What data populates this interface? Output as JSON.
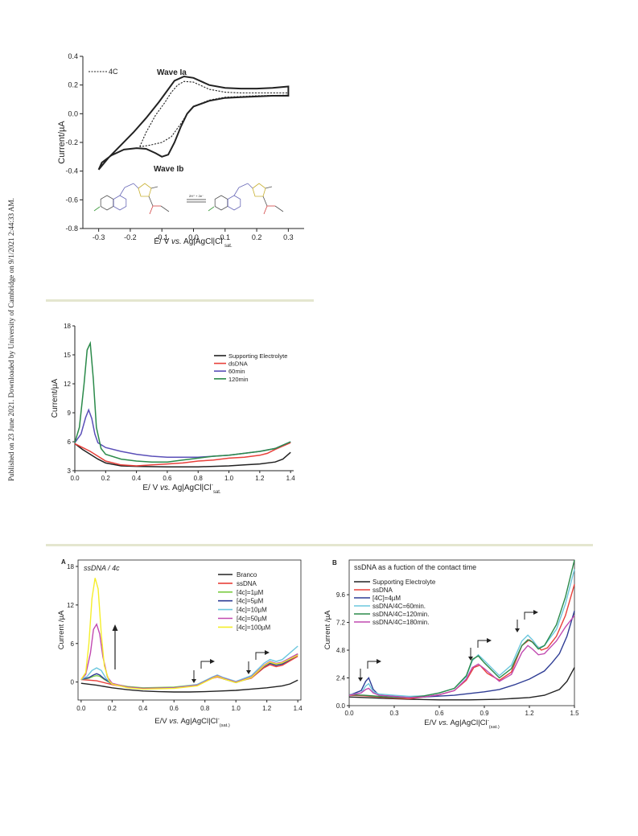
{
  "side_note": "Published on 23 June 2021. Downloaded by University of Cambridge on 9/1/2021 2:44:33 AM.",
  "colors": {
    "black": "#222222",
    "red": "#e8403a",
    "blue": "#2f3d95",
    "green": "#2b8a4a",
    "lightgreen": "#7ccc45",
    "cyan": "#6cc7de",
    "magenta": "#c14ab0",
    "yellow": "#f5ee2a",
    "purple": "#5a4fb8",
    "separator": "#e4e6cf"
  },
  "chart_data": [
    {
      "id": "cv",
      "type": "line",
      "ylabel": "Current/µA",
      "xlabel_main": "E/ V vs. Ag|AgCl|Cl",
      "xlabel_sup": "-",
      "xlabel_sub": "sat.",
      "xlim": [
        -0.35,
        0.35
      ],
      "ylim": [
        -0.8,
        0.4
      ],
      "xticks": [
        "-0.3",
        "-0.2",
        "-0.1",
        "0.0",
        "0.1",
        "0.2",
        "0.3"
      ],
      "yticks": [
        "-0.8",
        "-0.6",
        "-0.4",
        "-0.2",
        "0.0",
        "0.2",
        "0.4"
      ],
      "legend": "4C",
      "annotations": {
        "wave_a": "Wave Ia",
        "wave_b": "Wave Ib",
        "scheme_arrow": "2H⁺ + 2e⁻"
      },
      "series": [
        {
          "style": "solid",
          "color": "black",
          "x": [
            -0.3,
            -0.27,
            -0.23,
            -0.19,
            -0.15,
            -0.11,
            -0.08,
            -0.06,
            -0.03,
            0.0,
            0.05,
            0.1,
            0.15,
            0.2,
            0.25,
            0.3,
            0.3,
            0.25,
            0.2,
            0.15,
            0.1,
            0.05,
            0.0,
            -0.02,
            -0.04,
            -0.06,
            -0.08,
            -0.1,
            -0.12,
            -0.15,
            -0.18,
            -0.22,
            -0.26,
            -0.29,
            -0.3
          ],
          "y": [
            -0.39,
            -0.31,
            -0.22,
            -0.13,
            -0.03,
            0.08,
            0.17,
            0.23,
            0.26,
            0.25,
            0.2,
            0.18,
            0.175,
            0.175,
            0.18,
            0.19,
            0.125,
            0.125,
            0.12,
            0.115,
            0.11,
            0.09,
            0.05,
            0.0,
            -0.09,
            -0.2,
            -0.285,
            -0.3,
            -0.275,
            -0.245,
            -0.24,
            -0.25,
            -0.29,
            -0.34,
            -0.39
          ]
        },
        {
          "style": "dashed",
          "color": "black",
          "x": [
            -0.17,
            -0.15,
            -0.12,
            -0.09,
            -0.07,
            -0.05,
            -0.03,
            0.0,
            0.05,
            0.1,
            0.15,
            0.2,
            0.25,
            0.3,
            0.3,
            0.2,
            0.1,
            0.05,
            0.0,
            -0.02,
            -0.04,
            -0.07,
            -0.1,
            -0.14,
            -0.17
          ],
          "y": [
            -0.23,
            -0.13,
            -0.01,
            0.08,
            0.15,
            0.2,
            0.225,
            0.22,
            0.17,
            0.15,
            0.145,
            0.145,
            0.145,
            0.145,
            0.13,
            0.125,
            0.115,
            0.095,
            0.05,
            0.0,
            -0.07,
            -0.16,
            -0.2,
            -0.22,
            -0.23
          ]
        }
      ]
    },
    {
      "id": "dsdna",
      "type": "line",
      "ylabel": "Current/µA",
      "xlabel_main": "E/ V vs. Ag|AgCl|Cl",
      "xlabel_sup": "-",
      "xlabel_sub": "sat.",
      "xlim": [
        0.0,
        1.42
      ],
      "ylim": [
        3,
        18
      ],
      "xticks": [
        "0.0",
        "0.2",
        "0.4",
        "0.6",
        "0.8",
        "1.0",
        "1.2",
        "1.4"
      ],
      "yticks": [
        "3",
        "6",
        "9",
        "12",
        "15",
        "18"
      ],
      "series": [
        {
          "name": "Supporting Electrolyte",
          "color": "black",
          "x": [
            0.0,
            0.05,
            0.1,
            0.15,
            0.2,
            0.3,
            0.4,
            0.6,
            0.8,
            1.0,
            1.1,
            1.2,
            1.3,
            1.35,
            1.4
          ],
          "y": [
            5.8,
            5.2,
            4.7,
            4.2,
            3.8,
            3.5,
            3.45,
            3.4,
            3.4,
            3.5,
            3.6,
            3.7,
            3.9,
            4.2,
            4.9
          ]
        },
        {
          "name": "dsDNA",
          "color": "red",
          "x": [
            0.0,
            0.05,
            0.1,
            0.15,
            0.2,
            0.3,
            0.4,
            0.5,
            0.6,
            0.7,
            0.8,
            0.9,
            1.0,
            1.1,
            1.2,
            1.25,
            1.3,
            1.4
          ],
          "y": [
            5.8,
            5.4,
            5.0,
            4.5,
            4.0,
            3.6,
            3.5,
            3.6,
            3.7,
            3.8,
            4.0,
            4.1,
            4.3,
            4.4,
            4.6,
            4.8,
            5.2,
            5.9
          ]
        },
        {
          "name": "60min",
          "color": "purple",
          "x": [
            0.0,
            0.04,
            0.07,
            0.09,
            0.11,
            0.13,
            0.15,
            0.2,
            0.3,
            0.4,
            0.5,
            0.6,
            0.7,
            0.8,
            0.9,
            1.0,
            1.1,
            1.2,
            1.3,
            1.4
          ],
          "y": [
            5.9,
            6.8,
            8.5,
            9.3,
            8.4,
            6.8,
            5.9,
            5.4,
            5.0,
            4.7,
            4.5,
            4.4,
            4.4,
            4.4,
            4.5,
            4.6,
            4.8,
            5.0,
            5.3,
            6.0
          ]
        },
        {
          "name": "120min",
          "color": "green",
          "x": [
            0.0,
            0.03,
            0.06,
            0.08,
            0.1,
            0.12,
            0.14,
            0.17,
            0.2,
            0.3,
            0.4,
            0.5,
            0.6,
            0.7,
            0.8,
            0.9,
            1.0,
            1.1,
            1.2,
            1.3,
            1.4
          ],
          "y": [
            5.9,
            7.5,
            12.0,
            15.5,
            16.2,
            12.5,
            7.5,
            5.3,
            4.7,
            4.2,
            4.0,
            3.9,
            3.9,
            4.1,
            4.3,
            4.5,
            4.6,
            4.8,
            5.0,
            5.3,
            6.0
          ]
        }
      ]
    },
    {
      "id": "panel_a",
      "type": "line",
      "panel": "A",
      "title": "ssDNA / 4c",
      "ylabel": "Current /µA",
      "xlabel_main": "E/V vs. Ag|AgCl|Cl",
      "xlabel_sup": "-",
      "xlabel_sub": "(sat.)",
      "xlim": [
        -0.02,
        1.42
      ],
      "ylim": [
        -2.8,
        19
      ],
      "xticks": [
        "0.0",
        "0.2",
        "0.4",
        "0.6",
        "0.8",
        "1.0",
        "1.2",
        "1.4"
      ],
      "yticks": [
        "0",
        "6",
        "12",
        "18"
      ],
      "series": [
        {
          "name": "Branco",
          "color": "black",
          "x": [
            0.0,
            0.1,
            0.2,
            0.3,
            0.4,
            0.5,
            0.6,
            0.7,
            0.8,
            0.9,
            1.0,
            1.1,
            1.2,
            1.3,
            1.35,
            1.4
          ],
          "y": [
            -0.2,
            -0.5,
            -0.9,
            -1.2,
            -1.4,
            -1.5,
            -1.55,
            -1.55,
            -1.5,
            -1.4,
            -1.3,
            -1.1,
            -0.9,
            -0.6,
            -0.3,
            0.3
          ]
        },
        {
          "name": "ssDNA",
          "color": "red",
          "x": [
            0.0,
            0.1,
            0.2,
            0.3,
            0.4,
            0.6,
            0.75,
            0.85,
            0.88,
            0.92,
            1.0,
            1.1,
            1.18,
            1.22,
            1.26,
            1.3,
            1.4
          ],
          "y": [
            0.4,
            0.2,
            -0.4,
            -0.8,
            -1.0,
            -0.9,
            -0.5,
            0.6,
            0.8,
            0.5,
            0.0,
            0.6,
            2.2,
            2.7,
            2.4,
            2.6,
            4.0
          ]
        },
        {
          "name": "[4c]=1µM",
          "color": "lightgreen",
          "x": [
            0.0,
            0.05,
            0.08,
            0.1,
            0.12,
            0.15,
            0.2,
            0.3,
            0.4,
            0.6,
            0.75,
            0.85,
            0.88,
            0.92,
            1.0,
            1.1,
            1.18,
            1.22,
            1.26,
            1.3,
            1.4
          ],
          "y": [
            0.4,
            0.6,
            0.9,
            1.0,
            0.9,
            0.4,
            -0.3,
            -0.7,
            -0.9,
            -0.8,
            -0.4,
            0.8,
            1.0,
            0.6,
            0.0,
            0.8,
            2.5,
            3.0,
            2.7,
            2.9,
            4.3
          ]
        },
        {
          "name": "[4c]=5µM",
          "color": "blue",
          "x": [
            0.0,
            0.05,
            0.08,
            0.1,
            0.12,
            0.15,
            0.2,
            0.3,
            0.4,
            0.6,
            0.75,
            0.85,
            0.88,
            0.92,
            1.0,
            1.1,
            1.18,
            1.22,
            1.26,
            1.3,
            1.4
          ],
          "y": [
            0.4,
            0.7,
            1.1,
            1.3,
            1.1,
            0.5,
            -0.3,
            -0.8,
            -1.0,
            -0.9,
            -0.5,
            0.7,
            0.9,
            0.5,
            -0.1,
            0.7,
            2.4,
            2.9,
            2.6,
            2.8,
            4.2
          ]
        },
        {
          "name": "[4c]=10µM",
          "color": "cyan",
          "x": [
            0.0,
            0.04,
            0.07,
            0.1,
            0.13,
            0.16,
            0.2,
            0.3,
            0.4,
            0.6,
            0.75,
            0.85,
            0.88,
            0.92,
            1.0,
            1.1,
            1.18,
            1.22,
            1.26,
            1.3,
            1.4
          ],
          "y": [
            0.4,
            0.9,
            1.8,
            2.2,
            1.8,
            0.6,
            -0.3,
            -0.8,
            -1.0,
            -0.9,
            -0.4,
            0.8,
            1.1,
            0.7,
            0.1,
            1.0,
            2.9,
            3.5,
            3.2,
            3.5,
            5.6
          ]
        },
        {
          "name": "[4c]=50µM",
          "color": "magenta",
          "x": [
            0.0,
            0.03,
            0.06,
            0.08,
            0.1,
            0.12,
            0.14,
            0.17,
            0.2,
            0.3,
            0.4,
            0.6,
            0.75,
            0.85,
            0.88,
            0.92,
            1.0,
            1.1,
            1.18,
            1.22,
            1.26,
            1.3,
            1.4
          ],
          "y": [
            0.4,
            1.2,
            4.5,
            8.2,
            9.0,
            7.5,
            4.0,
            0.8,
            -0.2,
            -0.8,
            -1.0,
            -0.9,
            -0.5,
            0.7,
            1.0,
            0.6,
            0.0,
            0.8,
            2.6,
            3.2,
            2.9,
            3.1,
            4.4
          ]
        },
        {
          "name": "[4c]=100µM",
          "color": "yellow",
          "x": [
            0.0,
            0.03,
            0.05,
            0.07,
            0.09,
            0.11,
            0.13,
            0.15,
            0.18,
            0.2,
            0.3,
            0.4,
            0.6,
            0.75,
            0.85,
            0.88,
            0.92,
            1.0,
            1.1,
            1.18,
            1.22,
            1.26,
            1.3,
            1.4
          ],
          "y": [
            0.4,
            1.5,
            6.0,
            13.0,
            16.2,
            14.5,
            7.5,
            2.5,
            0.2,
            -0.3,
            -0.9,
            -1.1,
            -1.0,
            -0.6,
            0.6,
            0.9,
            0.5,
            -0.1,
            0.7,
            2.5,
            3.1,
            2.8,
            3.0,
            4.2
          ]
        }
      ]
    },
    {
      "id": "panel_b",
      "type": "line",
      "panel": "B",
      "title": "ssDNA as a fuction of the contact time",
      "ylabel": "Current /µA",
      "xlabel_main": "E/V vs. Ag|AgCl|Cl",
      "xlabel_sup": "-",
      "xlabel_sub": "(sat.)",
      "xlim": [
        0.0,
        1.5
      ],
      "ylim": [
        0,
        12.6
      ],
      "xticks": [
        "0.0",
        "0.3",
        "0.6",
        "0.9",
        "1.2",
        "1.5"
      ],
      "yticks": [
        "0.0",
        "2.4",
        "4.8",
        "7.2",
        "9.6"
      ],
      "series": [
        {
          "name": "Supporting Electrolyte",
          "color": "black",
          "x": [
            0.0,
            0.2,
            0.4,
            0.6,
            0.8,
            1.0,
            1.2,
            1.3,
            1.4,
            1.45,
            1.5
          ],
          "y": [
            0.75,
            0.65,
            0.55,
            0.5,
            0.5,
            0.55,
            0.7,
            0.9,
            1.4,
            2.1,
            3.3
          ]
        },
        {
          "name": "ssDNA",
          "color": "red",
          "x": [
            0.0,
            0.1,
            0.2,
            0.3,
            0.4,
            0.5,
            0.6,
            0.7,
            0.78,
            0.83,
            0.87,
            0.92,
            1.0,
            1.08,
            1.15,
            1.2,
            1.24,
            1.28,
            1.32,
            1.38,
            1.44,
            1.5
          ],
          "y": [
            0.9,
            0.85,
            0.75,
            0.65,
            0.6,
            0.75,
            0.95,
            1.3,
            2.2,
            3.3,
            3.5,
            2.8,
            2.2,
            2.9,
            5.2,
            5.7,
            5.3,
            4.8,
            5.0,
            6.0,
            7.8,
            10.5
          ]
        },
        {
          "name": "[4C]=4µM",
          "color": "blue",
          "x": [
            0.0,
            0.08,
            0.11,
            0.13,
            0.16,
            0.2,
            0.3,
            0.4,
            0.5,
            0.7,
            0.9,
            1.0,
            1.1,
            1.2,
            1.3,
            1.35,
            1.4,
            1.45,
            1.5
          ],
          "y": [
            0.9,
            1.3,
            2.1,
            2.4,
            1.4,
            0.9,
            0.8,
            0.7,
            0.75,
            0.9,
            1.2,
            1.4,
            1.8,
            2.3,
            3.0,
            3.7,
            4.5,
            6.0,
            8.2
          ]
        },
        {
          "name": "ssDNA/4C=60min.",
          "color": "cyan",
          "x": [
            0.0,
            0.08,
            0.11,
            0.13,
            0.16,
            0.2,
            0.3,
            0.4,
            0.5,
            0.6,
            0.7,
            0.78,
            0.82,
            0.86,
            0.9,
            1.0,
            1.08,
            1.15,
            1.19,
            1.22,
            1.26,
            1.3,
            1.38,
            1.44,
            1.5
          ],
          "y": [
            0.95,
            1.1,
            1.7,
            1.9,
            1.2,
            1.0,
            0.9,
            0.8,
            0.85,
            1.1,
            1.5,
            2.5,
            3.9,
            4.4,
            3.9,
            2.6,
            3.5,
            5.6,
            6.1,
            5.7,
            5.0,
            5.2,
            6.6,
            8.8,
            11.8
          ]
        },
        {
          "name": "ssDNA/4C=120min.",
          "color": "green",
          "x": [
            0.0,
            0.1,
            0.2,
            0.3,
            0.4,
            0.5,
            0.6,
            0.7,
            0.78,
            0.82,
            0.86,
            0.9,
            1.0,
            1.08,
            1.15,
            1.19,
            1.22,
            1.26,
            1.3,
            1.38,
            1.44,
            1.5
          ],
          "y": [
            0.95,
            0.9,
            0.8,
            0.7,
            0.7,
            0.85,
            1.1,
            1.5,
            2.6,
            4.0,
            4.3,
            3.7,
            2.4,
            3.2,
            5.2,
            5.7,
            5.5,
            4.9,
            5.2,
            7.0,
            9.4,
            12.6
          ]
        },
        {
          "name": "ssDNA/4C=180min.",
          "color": "magenta",
          "x": [
            0.0,
            0.08,
            0.11,
            0.13,
            0.16,
            0.2,
            0.3,
            0.4,
            0.5,
            0.6,
            0.7,
            0.78,
            0.82,
            0.86,
            0.9,
            1.0,
            1.08,
            1.15,
            1.19,
            1.22,
            1.26,
            1.3,
            1.38,
            1.44,
            1.5
          ],
          "y": [
            0.9,
            1.1,
            1.4,
            1.5,
            1.1,
            0.9,
            0.8,
            0.7,
            0.75,
            0.95,
            1.3,
            2.3,
            3.3,
            3.6,
            3.2,
            2.1,
            2.7,
            4.6,
            5.2,
            4.9,
            4.4,
            4.5,
            5.6,
            6.8,
            7.8
          ]
        }
      ]
    }
  ]
}
